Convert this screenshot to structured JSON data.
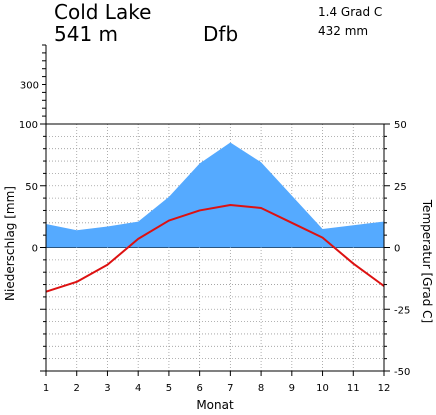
{
  "header": {
    "station": "Cold Lake",
    "elevation": "541 m",
    "climate_class": "Dfb",
    "mean_temperature": "1.4 Grad C",
    "annual_precipitation": "432 mm"
  },
  "chart_data": {
    "type": "area",
    "title": "",
    "x": [
      1,
      2,
      3,
      4,
      5,
      6,
      7,
      8,
      9,
      10,
      11,
      12
    ],
    "xlabel": "Monat",
    "ylabel_left": "Niederschlag [mm]",
    "ylabel_right": "Temperatur [Grad C]",
    "series": [
      {
        "name": "Niederschlag",
        "axis": "left",
        "render": "area",
        "color": "#55aaff",
        "values": [
          19,
          14,
          17,
          21,
          41,
          68,
          85,
          69,
          42,
          15,
          18,
          21
        ]
      },
      {
        "name": "Temperatur",
        "axis": "right",
        "render": "line",
        "color": "#dd1111",
        "values": [
          -17.9,
          -13.9,
          -7,
          3.5,
          10.9,
          15,
          17.2,
          16,
          10,
          4,
          -6.5,
          -15.6
        ]
      }
    ],
    "left_axis": {
      "ylim": [
        -100,
        100
      ],
      "tick_labels": [
        "0",
        "50",
        "100"
      ],
      "extended_tick_label": "300"
    },
    "right_axis": {
      "ylim": [
        -50,
        50
      ],
      "tick_labels": [
        "-50",
        "-25",
        "0",
        "25",
        "50"
      ]
    },
    "x_tick_labels": [
      "1",
      "2",
      "3",
      "4",
      "5",
      "6",
      "7",
      "8",
      "9",
      "10",
      "11",
      "12"
    ],
    "grid": true,
    "grid_style": "dotted",
    "legend": "none"
  }
}
